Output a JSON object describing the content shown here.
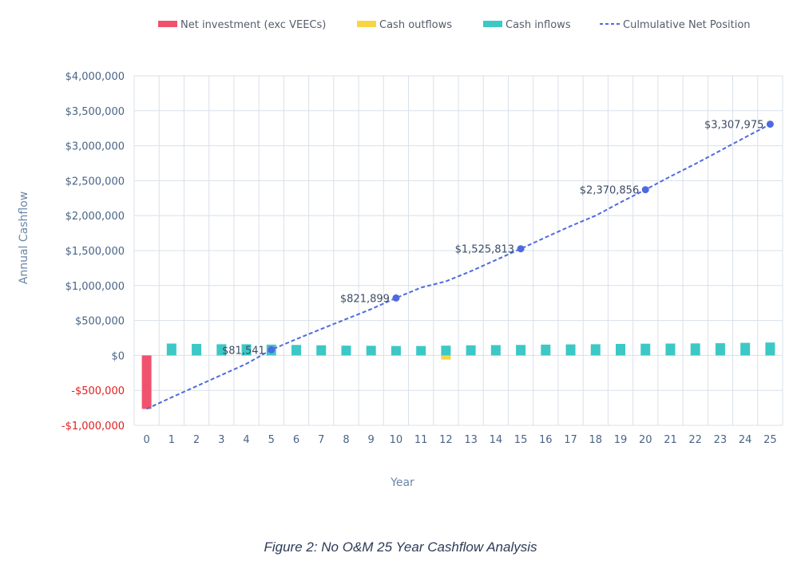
{
  "caption": "Figure 2: No O&M 25 Year Cashflow Analysis",
  "colors": {
    "net_investment": "#f0526e",
    "cash_outflows": "#f7d544",
    "cash_inflows": "#3cc8c6",
    "cumulative": "#4f6ae0",
    "grid": "#d9e0ea",
    "negative_tick": "#e02020"
  },
  "chart_data": {
    "type": "bar",
    "title": "",
    "xlabel": "Year",
    "ylabel": "Annual Cashflow",
    "ylim": [
      -1000000,
      4000000
    ],
    "yticks": [
      4000000,
      3500000,
      3000000,
      2500000,
      2000000,
      1500000,
      1000000,
      500000,
      0,
      -500000,
      -1000000
    ],
    "ytick_labels": [
      "$4,000,000",
      "$3,500,000",
      "$3,000,000",
      "$2,500,000",
      "$2,000,000",
      "$1,500,000",
      "$1,000,000",
      "$500,000",
      "$0",
      "-$500,000",
      "-$1,000,000"
    ],
    "categories": [
      "0",
      "1",
      "2",
      "3",
      "4",
      "5",
      "6",
      "7",
      "8",
      "9",
      "10",
      "11",
      "12",
      "13",
      "14",
      "15",
      "16",
      "17",
      "18",
      "19",
      "20",
      "21",
      "22",
      "23",
      "24",
      "25"
    ],
    "grid": true,
    "legend_position": "top",
    "series": [
      {
        "name": "Net investment (exc VEECs)",
        "kind": "bar",
        "values": [
          -765000,
          0,
          0,
          0,
          0,
          0,
          0,
          0,
          0,
          0,
          0,
          0,
          0,
          0,
          0,
          0,
          0,
          0,
          0,
          0,
          0,
          0,
          0,
          0,
          0,
          0
        ]
      },
      {
        "name": "Cash outflows",
        "kind": "bar",
        "values": [
          0,
          0,
          0,
          0,
          0,
          0,
          0,
          0,
          0,
          0,
          0,
          0,
          -60000,
          0,
          0,
          0,
          0,
          0,
          0,
          0,
          0,
          0,
          0,
          0,
          0,
          0
        ]
      },
      {
        "name": "Cash inflows",
        "kind": "bar",
        "values": [
          0,
          170000,
          165000,
          160000,
          160000,
          155000,
          150000,
          145000,
          140000,
          138000,
          135000,
          135000,
          140000,
          145000,
          148000,
          150000,
          155000,
          158000,
          160000,
          165000,
          168000,
          170000,
          172000,
          175000,
          180000,
          185000
        ]
      },
      {
        "name": "Culmulative Net Position",
        "kind": "line",
        "dashed": true,
        "values": [
          -765000,
          -600000,
          -440000,
          -280000,
          -120000,
          81541,
          233000,
          378000,
          520000,
          662000,
          821899,
          970000,
          1060000,
          1205000,
          1365000,
          1525813,
          1690000,
          1850000,
          2000000,
          2190000,
          2370856,
          2560000,
          2740000,
          2930000,
          3120000,
          3307975
        ],
        "markers": [
          5,
          10,
          15,
          20,
          25
        ],
        "labels": [
          "$81,541",
          "$821,899",
          "$1,525,813",
          "$2,370,856",
          "$3,307,975"
        ]
      }
    ]
  }
}
